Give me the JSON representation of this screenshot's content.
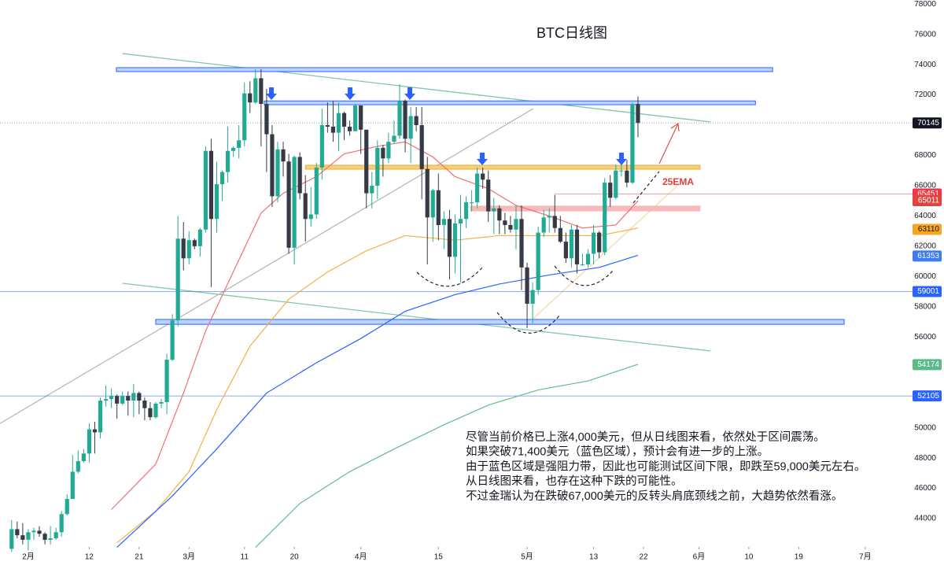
{
  "chart_data": {
    "type": "candlestick",
    "title": "BTC日线图",
    "up_color": "#22ab94",
    "down_color": "#363a45",
    "grid": false,
    "xlim": [
      -2.1,
      159.7
    ],
    "xticks": [
      {
        "value": 3,
        "label": "2月"
      },
      {
        "value": 14,
        "label": "12"
      },
      {
        "value": 23,
        "label": "21"
      },
      {
        "value": 32,
        "label": "3月"
      },
      {
        "value": 42,
        "label": "11"
      },
      {
        "value": 51,
        "label": "20"
      },
      {
        "value": 63,
        "label": "4月"
      },
      {
        "value": 77,
        "label": "15"
      },
      {
        "value": 93,
        "label": "5月"
      },
      {
        "value": 105,
        "label": "13"
      },
      {
        "value": 114,
        "label": "22"
      },
      {
        "value": 124,
        "label": "6月"
      },
      {
        "value": 133,
        "label": "10"
      },
      {
        "value": 142,
        "label": "19"
      },
      {
        "value": 154,
        "label": "7月"
      }
    ],
    "ylim": [
      42130,
      78270
    ],
    "yticks": [
      44000,
      46000,
      48000,
      50000,
      52000,
      54000,
      56000,
      58000,
      60000,
      62000,
      64000,
      66000,
      68000,
      70000,
      72000,
      74000,
      76000,
      78000
    ],
    "candles": [
      [
        42000,
        43900,
        41800,
        43300
      ],
      [
        43300,
        43800,
        42700,
        42900
      ],
      [
        42900,
        43700,
        42300,
        42600
      ],
      [
        42600,
        43300,
        41900,
        43100
      ],
      [
        43100,
        43400,
        42600,
        43200
      ],
      [
        43200,
        43500,
        42800,
        43000
      ],
      [
        43000,
        43100,
        42300,
        42600
      ],
      [
        42600,
        43500,
        42300,
        42700
      ],
      [
        42700,
        43400,
        42600,
        43100
      ],
      [
        43100,
        44500,
        42800,
        44300
      ],
      [
        44300,
        45600,
        44200,
        45300
      ],
      [
        45300,
        48200,
        45300,
        47100
      ],
      [
        47100,
        48500,
        47000,
        47800
      ],
      [
        47800,
        48600,
        47700,
        48300
      ],
      [
        48300,
        50300,
        47700,
        49900
      ],
      [
        49900,
        50400,
        48300,
        49700
      ],
      [
        49700,
        52000,
        49300,
        51800
      ],
      [
        51800,
        52800,
        51400,
        51900
      ],
      [
        51900,
        52600,
        51300,
        52100
      ],
      [
        52100,
        52200,
        50600,
        51600
      ],
      [
        51600,
        52400,
        51500,
        52100
      ],
      [
        52100,
        52400,
        50800,
        51800
      ],
      [
        51800,
        52900,
        50700,
        52300
      ],
      [
        52300,
        52400,
        50900,
        51800
      ],
      [
        51800,
        52000,
        50500,
        51300
      ],
      [
        51300,
        51700,
        50500,
        50700
      ],
      [
        50700,
        51700,
        50600,
        51600
      ],
      [
        51600,
        51900,
        51300,
        51700
      ],
      [
        51700,
        54900,
        50900,
        54500
      ],
      [
        54500,
        57500,
        54400,
        57100
      ],
      [
        57100,
        64000,
        56700,
        62500
      ],
      [
        62500,
        63600,
        60400,
        61200
      ],
      [
        61200,
        63000,
        60800,
        62400
      ],
      [
        62400,
        62500,
        61800,
        62000
      ],
      [
        62000,
        63200,
        61300,
        63100
      ],
      [
        63100,
        68600,
        62900,
        68300
      ],
      [
        68300,
        69100,
        59300,
        63800
      ],
      [
        63800,
        67600,
        62900,
        66100
      ],
      [
        66100,
        67000,
        65000,
        66900
      ],
      [
        66900,
        69900,
        66200,
        68300
      ],
      [
        68300,
        68600,
        67900,
        68500
      ],
      [
        68500,
        70000,
        67800,
        69000
      ],
      [
        69000,
        72800,
        68600,
        72100
      ],
      [
        72100,
        72900,
        70800,
        71500
      ],
      [
        71500,
        73700,
        71400,
        73100
      ],
      [
        73100,
        73700,
        68600,
        71400
      ],
      [
        71400,
        72400,
        66900,
        69400
      ],
      [
        69400,
        70000,
        64600,
        65300
      ],
      [
        65300,
        68900,
        64900,
        68400
      ],
      [
        68400,
        68900,
        66600,
        67600
      ],
      [
        67600,
        68100,
        61500,
        61900
      ],
      [
        61900,
        68000,
        60800,
        67900
      ],
      [
        67900,
        68200,
        65100,
        65500
      ],
      [
        65500,
        66700,
        62300,
        63800
      ],
      [
        63800,
        65900,
        63300,
        64100
      ],
      [
        64100,
        67500,
        63800,
        67200
      ],
      [
        67200,
        71100,
        66400,
        70000
      ],
      [
        70000,
        71500,
        69500,
        69900
      ],
      [
        69900,
        71600,
        68900,
        69500
      ],
      [
        69500,
        71500,
        68300,
        70800
      ],
      [
        70800,
        70900,
        69000,
        69900
      ],
      [
        69900,
        70300,
        69300,
        69600
      ],
      [
        69600,
        71400,
        69600,
        71300
      ],
      [
        71300,
        71300,
        68100,
        69700
      ],
      [
        69700,
        69700,
        64500,
        65500
      ],
      [
        65500,
        66900,
        64500,
        66000
      ],
      [
        66000,
        69000,
        65100,
        68500
      ],
      [
        68500,
        68700,
        66600,
        67800
      ],
      [
        67800,
        69500,
        67500,
        68900
      ],
      [
        68900,
        70300,
        68800,
        69300
      ],
      [
        69300,
        72700,
        69100,
        71600
      ],
      [
        71600,
        71700,
        68200,
        69100
      ],
      [
        69100,
        71200,
        67500,
        70600
      ],
      [
        70600,
        71200,
        69600,
        70000
      ],
      [
        70000,
        71200,
        65100,
        67100
      ],
      [
        67100,
        67900,
        60800,
        63900
      ],
      [
        63900,
        65800,
        62300,
        65700
      ],
      [
        65700,
        66800,
        62400,
        63400
      ],
      [
        63400,
        64300,
        61800,
        63800
      ],
      [
        63800,
        64400,
        59800,
        61300
      ],
      [
        61300,
        64100,
        60200,
        63500
      ],
      [
        63500,
        65400,
        59600,
        63800
      ],
      [
        63800,
        65300,
        63200,
        64900
      ],
      [
        64900,
        65700,
        64300,
        64900
      ],
      [
        64900,
        67200,
        64500,
        66800
      ],
      [
        66800,
        67200,
        65800,
        66400
      ],
      [
        66400,
        67000,
        63600,
        64300
      ],
      [
        64300,
        65200,
        62800,
        64500
      ],
      [
        64500,
        64700,
        62800,
        63700
      ],
      [
        63700,
        64200,
        62800,
        63400
      ],
      [
        63400,
        64000,
        62900,
        63100
      ],
      [
        63100,
        64700,
        61800,
        63800
      ],
      [
        63800,
        64700,
        59100,
        60600
      ],
      [
        60600,
        60900,
        56600,
        58200
      ],
      [
        58200,
        59600,
        56900,
        59100
      ],
      [
        59100,
        63300,
        58800,
        62900
      ],
      [
        62900,
        64400,
        62600,
        63900
      ],
      [
        63900,
        64500,
        62900,
        64000
      ],
      [
        64000,
        65400,
        62900,
        63200
      ],
      [
        63200,
        64000,
        62200,
        62300
      ],
      [
        62300,
        62900,
        60900,
        61200
      ],
      [
        61200,
        63400,
        60600,
        63100
      ],
      [
        63100,
        63400,
        60200,
        60800
      ],
      [
        60800,
        61500,
        60700,
        60800
      ],
      [
        60800,
        61800,
        60600,
        61500
      ],
      [
        61500,
        63400,
        60800,
        62900
      ],
      [
        62900,
        63000,
        61200,
        61600
      ],
      [
        61600,
        66500,
        61400,
        66200
      ],
      [
        66200,
        66700,
        64600,
        65200
      ],
      [
        65200,
        67400,
        65100,
        67000
      ],
      [
        67000,
        67400,
        66600,
        67000
      ],
      [
        67000,
        67700,
        65900,
        66200
      ],
      [
        66200,
        71500,
        66100,
        71400
      ],
      [
        71400,
        71900,
        69200,
        70145
      ]
    ],
    "lines": [
      {
        "color": "#f07070",
        "x": [
          18,
          26,
          31,
          35,
          41,
          45,
          49,
          55,
          60,
          66,
          71,
          76,
          80,
          86,
          91,
          97,
          103,
          109,
          113
        ],
        "values": [
          44600,
          47600,
          52300,
          56400,
          61100,
          64200,
          65500,
          66600,
          68100,
          68600,
          68900,
          67900,
          66600,
          65800,
          64700,
          64000,
          63200,
          63400,
          65000
        ]
      },
      {
        "color": "#f5b041",
        "x": [
          19,
          26,
          32,
          37,
          43,
          50,
          57,
          64,
          71,
          80,
          88,
          97,
          106,
          113
        ],
        "values": [
          42400,
          44500,
          47100,
          51200,
          55400,
          58500,
          60300,
          61700,
          62700,
          62400,
          62700,
          62700,
          62700,
          63200
        ]
      },
      {
        "color": "#2962ff",
        "x": [
          19,
          29,
          37,
          46,
          55,
          63,
          71,
          80,
          88,
          97,
          106,
          113
        ],
        "values": [
          42100,
          45500,
          48600,
          52300,
          54300,
          55900,
          57700,
          58800,
          59500,
          60100,
          60600,
          61400
        ]
      },
      {
        "color": "#66bb8a",
        "x": [
          44,
          52,
          61,
          69,
          78,
          86,
          95,
          104,
          113
        ],
        "values": [
          42100,
          45000,
          47100,
          48600,
          50200,
          51500,
          52500,
          53100,
          54200
        ]
      }
    ],
    "trendlines": [
      {
        "color": "#7fc8a9",
        "x": [
          20,
          126.1
        ],
        "values": [
          74730,
          70210
        ]
      },
      {
        "color": "#7fc8a9",
        "x": [
          20,
          126.1
        ],
        "values": [
          59550,
          55080
        ]
      },
      {
        "color": "#b8b8b8",
        "x": [
          -2.1,
          94.1
        ],
        "values": [
          50290,
          71090
        ]
      },
      {
        "color": "#f7d9a8",
        "x": [
          93.3,
          120.7
        ],
        "values": [
          56950,
          66200
        ]
      }
    ],
    "zones": [
      {
        "color": "#bcd4fb",
        "border": "#2962ff",
        "x": [
          18.9,
          137.3
        ],
        "y": [
          73540,
          73800
        ]
      },
      {
        "color": "#bcd4fb",
        "border": "#2962ff",
        "x": [
          45.6,
          134.2
        ],
        "y": [
          71350,
          71600
        ]
      },
      {
        "color": "#f8cf7a",
        "border": "#f0a830",
        "x": [
          53,
          124.2
        ],
        "y": [
          67090,
          67350
        ]
      },
      {
        "color": "#f7b9b9",
        "border": "#f7b9b9",
        "x": [
          82.8,
          124.2
        ],
        "y": [
          64330,
          64650
        ]
      },
      {
        "color": "#bcd4fb",
        "border": "#2962ff",
        "x": [
          26,
          150.2
        ],
        "y": [
          56840,
          57160
        ]
      }
    ],
    "price_labels": [
      {
        "value": 70145,
        "color": "#131722",
        "line": "dotted"
      },
      {
        "value": 65451,
        "color": "#f23645",
        "line": "solid",
        "from_x": 98
      },
      {
        "value": 65011,
        "color": "#e0443e"
      },
      {
        "value": 63110,
        "color": "#f5a623"
      },
      {
        "value": 61353,
        "color": "#3d7bf0"
      },
      {
        "value": 59001,
        "color": "#2962ff",
        "line": "solid"
      },
      {
        "value": 54174,
        "color": "#5cba8a"
      },
      {
        "value": 52105,
        "color": "#2962ff",
        "line": "solid"
      }
    ],
    "ema_label": "25EMA",
    "annotation_lines": [
      "尽管当前价格已上涨4,000美元，但从日线图来看，依然处于区间震荡。",
      "如果突破71,400美元（蓝色区域），预计会有进一步的上涨。",
      "由于蓝色区域是强阻力带，因此也可能测试区间下限，即跌至59,000美元左右。",
      "从日线图来看，也存在这种下跌的可能性。",
      "不过金瑞认为在跌破67,000美元的反转头肩底颈线之前，大趋势依然看涨。"
    ]
  }
}
